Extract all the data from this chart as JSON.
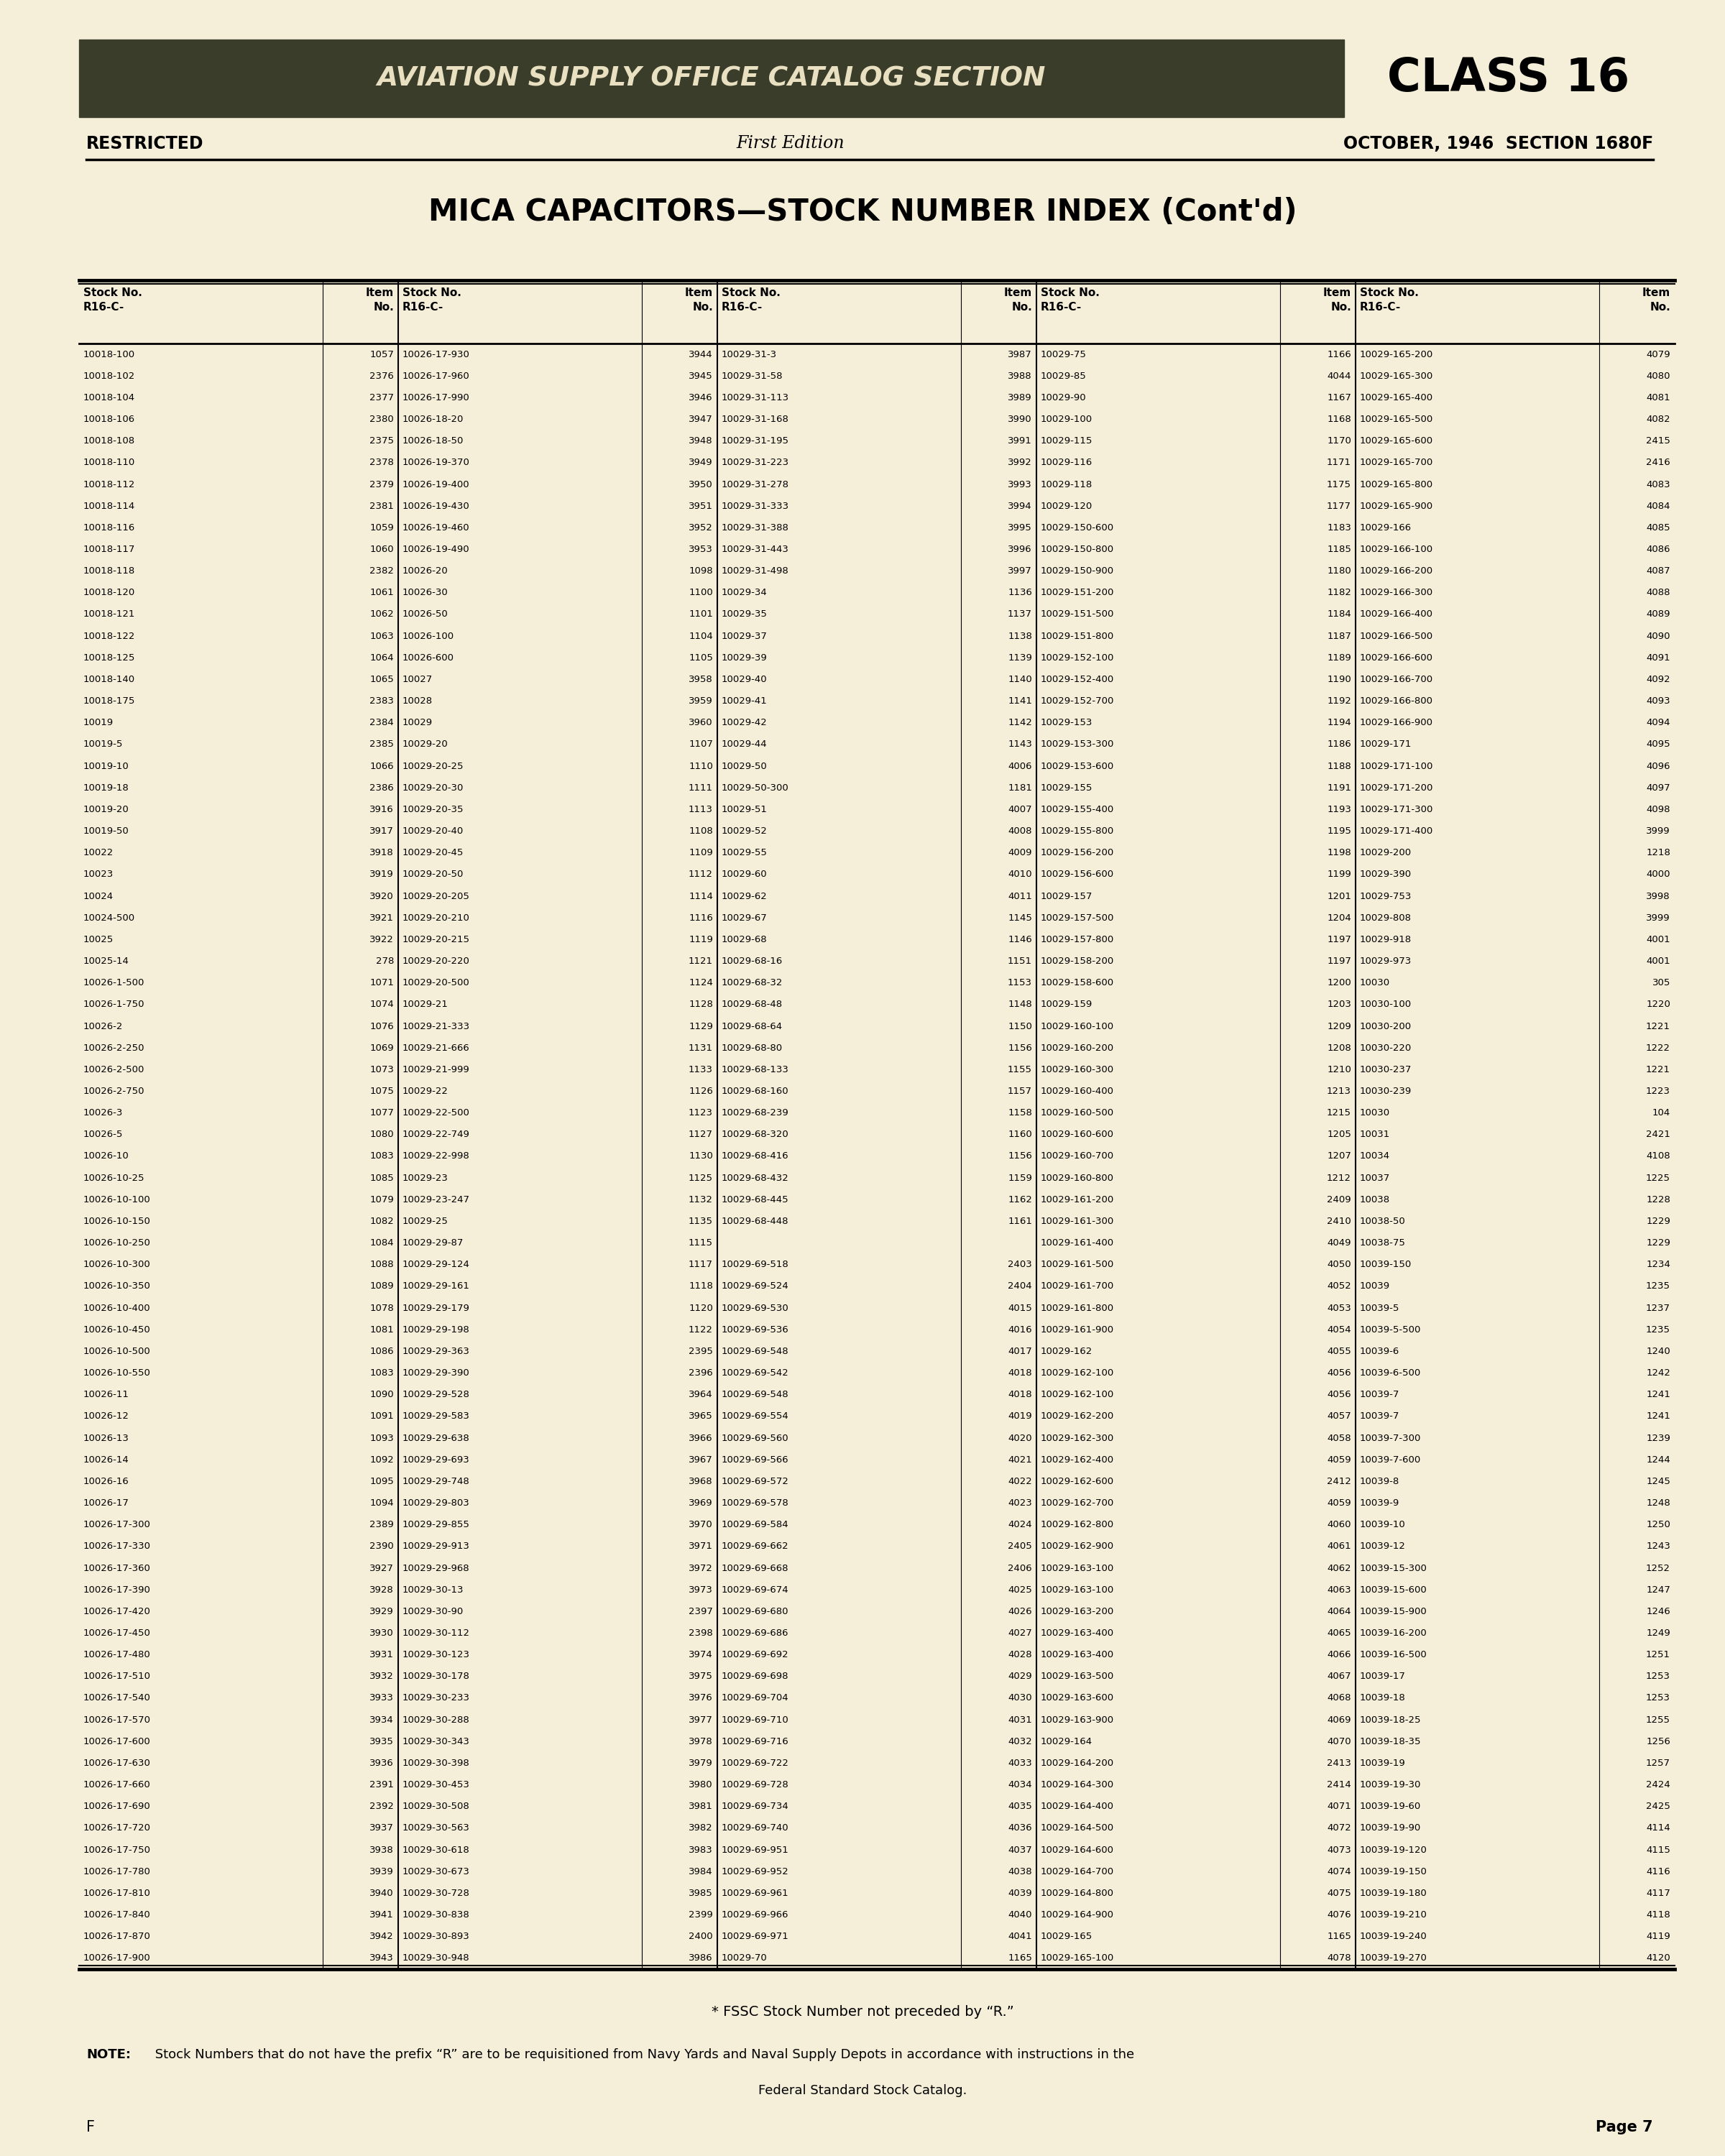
{
  "bg_color": "#f5eed8",
  "header_bg": "#3a3d2a",
  "header_text_color": "#e8e0c0",
  "header_title": "AVIATION SUPPLY OFFICE CATALOG SECTION",
  "header_class": "CLASS 16",
  "restricted": "RESTRICTED",
  "edition": "First Edition",
  "date_section": "OCTOBER, 1946  SECTION 1680F",
  "page_title": "MICA CAPACITORS—STOCK NUMBER INDEX (Cont'd)",
  "col_headers_stock": "Stock No.\nR16-C-",
  "col_headers_item": "Item\nNo.",
  "note": "* FSSC Stock Number not preceded by “R.”",
  "note2_bold": "NOTE:",
  "note2_rest": " Stock Numbers that do not have the prefix “R” are to be requisitioned from Navy Yards and Naval Supply Depots in accordance with instructions in the",
  "note2_line2": "Federal Standard Stock Catalog.",
  "page_num": "Page 7",
  "footer_f": "F",
  "table_data": [
    [
      "10018-100",
      "1057",
      "10026-17-930",
      "3944",
      "10029-31-3",
      "3987",
      "10029-75",
      "1166",
      "10029-165-200",
      "4079"
    ],
    [
      "10018-102",
      "2376",
      "10026-17-960",
      "3945",
      "10029-31-58",
      "3988",
      "10029-85",
      "4044",
      "10029-165-300",
      "4080"
    ],
    [
      "10018-104",
      "2377",
      "10026-17-990",
      "3946",
      "10029-31-113",
      "3989",
      "10029-90",
      "1167",
      "10029-165-400",
      "4081"
    ],
    [
      "10018-106",
      "2380",
      "10026-18-20",
      "3947",
      "10029-31-168",
      "3990",
      "10029-100",
      "1168",
      "10029-165-500",
      "4082"
    ],
    [
      "10018-108",
      "2375",
      "10026-18-50",
      "3948",
      "10029-31-195",
      "3991",
      "10029-115",
      "1170",
      "10029-165-600",
      "2415"
    ],
    [
      "10018-110",
      "2378",
      "10026-19-370",
      "3949",
      "10029-31-223",
      "3992",
      "10029-116",
      "1171",
      "10029-165-700",
      "2416"
    ],
    [
      "10018-112",
      "2379",
      "10026-19-400",
      "3950",
      "10029-31-278",
      "3993",
      "10029-118",
      "1175",
      "10029-165-800",
      "4083"
    ],
    [
      "10018-114",
      "2381",
      "10026-19-430",
      "3951",
      "10029-31-333",
      "3994",
      "10029-120",
      "1177",
      "10029-165-900",
      "4084"
    ],
    [
      "10018-116",
      "1059",
      "10026-19-460",
      "3952",
      "10029-31-388",
      "3995",
      "10029-150-600",
      "1183",
      "10029-166",
      "4085"
    ],
    [
      "10018-117",
      "1060",
      "10026-19-490",
      "3953",
      "10029-31-443",
      "3996",
      "10029-150-800",
      "1185",
      "10029-166-100",
      "4086"
    ],
    [
      "10018-118",
      "2382",
      "10026-20",
      "1098",
      "10029-31-498",
      "3997",
      "10029-150-900",
      "1180",
      "10029-166-200",
      "4087"
    ],
    [
      "10018-120",
      "1061",
      "10026-30",
      "1100",
      "10029-34",
      "1136",
      "10029-151-200",
      "1182",
      "10029-166-300",
      "4088"
    ],
    [
      "10018-121",
      "1062",
      "10026-50",
      "1101",
      "10029-35",
      "1137",
      "10029-151-500",
      "1184",
      "10029-166-400",
      "4089"
    ],
    [
      "10018-122",
      "1063",
      "10026-100",
      "1104",
      "10029-37",
      "1138",
      "10029-151-800",
      "1187",
      "10029-166-500",
      "4090"
    ],
    [
      "10018-125",
      "1064",
      "10026-600",
      "1105",
      "10029-39",
      "1139",
      "10029-152-100",
      "1189",
      "10029-166-600",
      "4091"
    ],
    [
      "10018-140",
      "1065",
      "10027",
      "3958",
      "10029-40",
      "1140",
      "10029-152-400",
      "1190",
      "10029-166-700",
      "4092"
    ],
    [
      "10018-175",
      "2383",
      "10028",
      "3959",
      "10029-41",
      "1141",
      "10029-152-700",
      "1192",
      "10029-166-800",
      "4093"
    ],
    [
      "10019",
      "2384",
      "10029",
      "3960",
      "10029-42",
      "1142",
      "10029-153",
      "1194",
      "10029-166-900",
      "4094"
    ],
    [
      "10019-5",
      "2385",
      "10029-20",
      "1107",
      "10029-44",
      "1143",
      "10029-153-300",
      "1186",
      "10029-171",
      "4095"
    ],
    [
      "10019-10",
      "1066",
      "10029-20-25",
      "1110",
      "10029-50",
      "4006",
      "10029-153-600",
      "1188",
      "10029-171-100",
      "4096"
    ],
    [
      "10019-18",
      "2386",
      "10029-20-30",
      "1111",
      "10029-50-300",
      "1181",
      "10029-155",
      "1191",
      "10029-171-200",
      "4097"
    ],
    [
      "10019-20",
      "3916",
      "10029-20-35",
      "1113",
      "10029-51",
      "4007",
      "10029-155-400",
      "1193",
      "10029-171-300",
      "4098"
    ],
    [
      "10019-50",
      "3917",
      "10029-20-40",
      "1108",
      "10029-52",
      "4008",
      "10029-155-800",
      "1195",
      "10029-171-400",
      "3999"
    ],
    [
      "10022",
      "3918",
      "10029-20-45",
      "1109",
      "10029-55",
      "4009",
      "10029-156-200",
      "1198",
      "10029-200",
      "1218"
    ],
    [
      "10023",
      "3919",
      "10029-20-50",
      "1112",
      "10029-60",
      "4010",
      "10029-156-600",
      "1199",
      "10029-390",
      "4000"
    ],
    [
      "10024",
      "3920",
      "10029-20-205",
      "1114",
      "10029-62",
      "4011",
      "10029-157",
      "1201",
      "10029-753",
      "3998"
    ],
    [
      "10024-500",
      "3921",
      "10029-20-210",
      "1116",
      "10029-67",
      "1145",
      "10029-157-500",
      "1204",
      "10029-808",
      "3999"
    ],
    [
      "10025",
      "3922",
      "10029-20-215",
      "1119",
      "10029-68",
      "1146",
      "10029-157-800",
      "1197",
      "10029-918",
      "4001"
    ],
    [
      "10025-14",
      "278",
      "10029-20-220",
      "1121",
      "10029-68-16",
      "1151",
      "10029-158-200",
      "1197",
      "10029-973",
      "4001"
    ],
    [
      "10026-1-500",
      "1071",
      "10029-20-500",
      "1124",
      "10029-68-32",
      "1153",
      "10029-158-600",
      "1200",
      "10030",
      "305"
    ],
    [
      "10026-1-750",
      "1074",
      "10029-21",
      "1128",
      "10029-68-48",
      "1148",
      "10029-159",
      "1203",
      "10030-100",
      "1220"
    ],
    [
      "10026-2",
      "1076",
      "10029-21-333",
      "1129",
      "10029-68-64",
      "1150",
      "10029-160-100",
      "1209",
      "10030-200",
      "1221"
    ],
    [
      "10026-2-250",
      "1069",
      "10029-21-666",
      "1131",
      "10029-68-80",
      "1156",
      "10029-160-200",
      "1208",
      "10030-220",
      "1222"
    ],
    [
      "10026-2-500",
      "1073",
      "10029-21-999",
      "1133",
      "10029-68-133",
      "1155",
      "10029-160-300",
      "1210",
      "10030-237",
      "1221"
    ],
    [
      "10026-2-750",
      "1075",
      "10029-22",
      "1126",
      "10029-68-160",
      "1157",
      "10029-160-400",
      "1213",
      "10030-239",
      "1223"
    ],
    [
      "10026-3",
      "1077",
      "10029-22-500",
      "1123",
      "10029-68-239",
      "1158",
      "10029-160-500",
      "1215",
      "10030",
      "104"
    ],
    [
      "10026-5",
      "1080",
      "10029-22-749",
      "1127",
      "10029-68-320",
      "1160",
      "10029-160-600",
      "1205",
      "10031",
      "2421"
    ],
    [
      "10026-10",
      "1083",
      "10029-22-998",
      "1130",
      "10029-68-416",
      "1156",
      "10029-160-700",
      "1207",
      "10034",
      "4108"
    ],
    [
      "10026-10-25",
      "1085",
      "10029-23",
      "1125",
      "10029-68-432",
      "1159",
      "10029-160-800",
      "1212",
      "10037",
      "1225"
    ],
    [
      "10026-10-100",
      "1079",
      "10029-23-247",
      "1132",
      "10029-68-445",
      "1162",
      "10029-161-200",
      "2409",
      "10038",
      "1228"
    ],
    [
      "10026-10-150",
      "1082",
      "10029-25",
      "1135",
      "10029-68-448",
      "1161",
      "10029-161-300",
      "2410",
      "10038-50",
      "1229"
    ],
    [
      "10026-10-250",
      "1084",
      "10029-29-87",
      "1115",
      "",
      "",
      "10029-161-400",
      "4049",
      "10038-75",
      "1229"
    ],
    [
      "10026-10-300",
      "1088",
      "10029-29-124",
      "1117",
      "10029-69-518",
      "2403",
      "10029-161-500",
      "4050",
      "10039-150",
      "1234"
    ],
    [
      "10026-10-350",
      "1089",
      "10029-29-161",
      "1118",
      "10029-69-524",
      "2404",
      "10029-161-700",
      "4052",
      "10039",
      "1235"
    ],
    [
      "10026-10-400",
      "1078",
      "10029-29-179",
      "1120",
      "10029-69-530",
      "4015",
      "10029-161-800",
      "4053",
      "10039-5",
      "1237"
    ],
    [
      "10026-10-450",
      "1081",
      "10029-29-198",
      "1122",
      "10029-69-536",
      "4016",
      "10029-161-900",
      "4054",
      "10039-5-500",
      "1235"
    ],
    [
      "10026-10-500",
      "1086",
      "10029-29-363",
      "2395",
      "10029-69-548",
      "4017",
      "10029-162",
      "4055",
      "10039-6",
      "1240"
    ],
    [
      "10026-10-550",
      "1083",
      "10029-29-390",
      "2396",
      "10029-69-542",
      "4018",
      "10029-162-100",
      "4056",
      "10039-6-500",
      "1242"
    ],
    [
      "10026-11",
      "1090",
      "10029-29-528",
      "3964",
      "10029-69-548",
      "4018",
      "10029-162-100",
      "4056",
      "10039-7",
      "1241"
    ],
    [
      "10026-12",
      "1091",
      "10029-29-583",
      "3965",
      "10029-69-554",
      "4019",
      "10029-162-200",
      "4057",
      "10039-7",
      "1241"
    ],
    [
      "10026-13",
      "1093",
      "10029-29-638",
      "3966",
      "10029-69-560",
      "4020",
      "10029-162-300",
      "4058",
      "10039-7-300",
      "1239"
    ],
    [
      "10026-14",
      "1092",
      "10029-29-693",
      "3967",
      "10029-69-566",
      "4021",
      "10029-162-400",
      "4059",
      "10039-7-600",
      "1244"
    ],
    [
      "10026-16",
      "1095",
      "10029-29-748",
      "3968",
      "10029-69-572",
      "4022",
      "10029-162-600",
      "2412",
      "10039-8",
      "1245"
    ],
    [
      "10026-17",
      "1094",
      "10029-29-803",
      "3969",
      "10029-69-578",
      "4023",
      "10029-162-700",
      "4059",
      "10039-9",
      "1248"
    ],
    [
      "10026-17-300",
      "2389",
      "10029-29-855",
      "3970",
      "10029-69-584",
      "4024",
      "10029-162-800",
      "4060",
      "10039-10",
      "1250"
    ],
    [
      "10026-17-330",
      "2390",
      "10029-29-913",
      "3971",
      "10029-69-662",
      "2405",
      "10029-162-900",
      "4061",
      "10039-12",
      "1243"
    ],
    [
      "10026-17-360",
      "3927",
      "10029-29-968",
      "3972",
      "10029-69-668",
      "2406",
      "10029-163-100",
      "4062",
      "10039-15-300",
      "1252"
    ],
    [
      "10026-17-390",
      "3928",
      "10029-30-13",
      "3973",
      "10029-69-674",
      "4025",
      "10029-163-100",
      "4063",
      "10039-15-600",
      "1247"
    ],
    [
      "10026-17-420",
      "3929",
      "10029-30-90",
      "2397",
      "10029-69-680",
      "4026",
      "10029-163-200",
      "4064",
      "10039-15-900",
      "1246"
    ],
    [
      "10026-17-450",
      "3930",
      "10029-30-112",
      "2398",
      "10029-69-686",
      "4027",
      "10029-163-400",
      "4065",
      "10039-16-200",
      "1249"
    ],
    [
      "10026-17-480",
      "3931",
      "10029-30-123",
      "3974",
      "10029-69-692",
      "4028",
      "10029-163-400",
      "4066",
      "10039-16-500",
      "1251"
    ],
    [
      "10026-17-510",
      "3932",
      "10029-30-178",
      "3975",
      "10029-69-698",
      "4029",
      "10029-163-500",
      "4067",
      "10039-17",
      "1253"
    ],
    [
      "10026-17-540",
      "3933",
      "10029-30-233",
      "3976",
      "10029-69-704",
      "4030",
      "10029-163-600",
      "4068",
      "10039-18",
      "1253"
    ],
    [
      "10026-17-570",
      "3934",
      "10029-30-288",
      "3977",
      "10029-69-710",
      "4031",
      "10029-163-900",
      "4069",
      "10039-18-25",
      "1255"
    ],
    [
      "10026-17-600",
      "3935",
      "10029-30-343",
      "3978",
      "10029-69-716",
      "4032",
      "10029-164",
      "4070",
      "10039-18-35",
      "1256"
    ],
    [
      "10026-17-630",
      "3936",
      "10029-30-398",
      "3979",
      "10029-69-722",
      "4033",
      "10029-164-200",
      "2413",
      "10039-19",
      "1257"
    ],
    [
      "10026-17-660",
      "2391",
      "10029-30-453",
      "3980",
      "10029-69-728",
      "4034",
      "10029-164-300",
      "2414",
      "10039-19-30",
      "2424"
    ],
    [
      "10026-17-690",
      "2392",
      "10029-30-508",
      "3981",
      "10029-69-734",
      "4035",
      "10029-164-400",
      "4071",
      "10039-19-60",
      "2425"
    ],
    [
      "10026-17-720",
      "3937",
      "10029-30-563",
      "3982",
      "10029-69-740",
      "4036",
      "10029-164-500",
      "4072",
      "10039-19-90",
      "4114"
    ],
    [
      "10026-17-750",
      "3938",
      "10029-30-618",
      "3983",
      "10029-69-951",
      "4037",
      "10029-164-600",
      "4073",
      "10039-19-120",
      "4115"
    ],
    [
      "10026-17-780",
      "3939",
      "10029-30-673",
      "3984",
      "10029-69-952",
      "4038",
      "10029-164-700",
      "4074",
      "10039-19-150",
      "4116"
    ],
    [
      "10026-17-810",
      "3940",
      "10029-30-728",
      "3985",
      "10029-69-961",
      "4039",
      "10029-164-800",
      "4075",
      "10039-19-180",
      "4117"
    ],
    [
      "10026-17-840",
      "3941",
      "10029-30-838",
      "2399",
      "10029-69-966",
      "4040",
      "10029-164-900",
      "4076",
      "10039-19-210",
      "4118"
    ],
    [
      "10026-17-870",
      "3942",
      "10029-30-893",
      "2400",
      "10029-69-971",
      "4041",
      "10029-165",
      "1165",
      "10039-19-240",
      "4119"
    ],
    [
      "10026-17-900",
      "3943",
      "10029-30-948",
      "3986",
      "10029-70",
      "1165",
      "10029-165-100",
      "4078",
      "10039-19-270",
      "4120"
    ]
  ]
}
